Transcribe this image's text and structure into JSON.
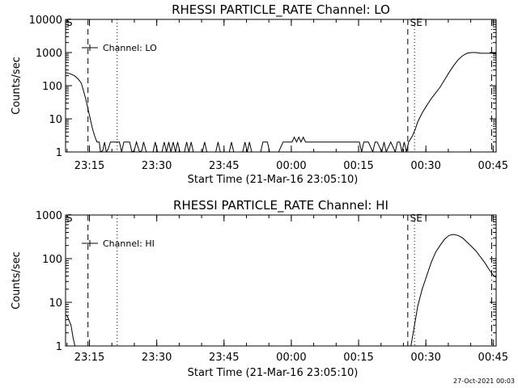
{
  "footer": "27-Oct-2021 00:03",
  "chart_data": [
    {
      "type": "line",
      "title": "RHESSI PARTICLE_RATE Channel: LO",
      "xlabel": "Start Time (21-Mar-16 23:05:10)",
      "ylabel": "Counts/sec",
      "yscale": "log",
      "ylim": [
        1,
        10000
      ],
      "yticks": [
        "1",
        "10",
        "100",
        "1000",
        "10000"
      ],
      "xlim_minutes": [
        4.5,
        45
      ],
      "xtick_labels": [
        "23:15",
        "23:30",
        "23:45",
        "00:00",
        "00:15",
        "00:30",
        "00:45"
      ],
      "legend": {
        "label": "Channel: LO",
        "position": "top-left"
      },
      "flags": [
        "S",
        "SE"
      ],
      "grid": false,
      "series": [
        {
          "name": "Channel: LO",
          "points": [
            [
              4.5,
              250
            ],
            [
              5.5,
              230
            ],
            [
              6.5,
              200
            ],
            [
              7.3,
              160
            ],
            [
              8.0,
              120
            ],
            [
              8.5,
              70
            ],
            [
              9.0,
              40
            ],
            [
              9.5,
              20
            ],
            [
              10.0,
              10
            ],
            [
              10.5,
              5
            ],
            [
              11.0,
              3
            ],
            [
              11.5,
              2
            ],
            [
              12.0,
              2
            ],
            [
              12.3,
              1
            ],
            [
              12.8,
              1.1
            ],
            [
              13.2,
              2
            ],
            [
              13.6,
              1
            ],
            [
              14.0,
              1.2
            ],
            [
              14.5,
              2
            ],
            [
              15.2,
              2
            ],
            [
              16.0,
              2
            ],
            [
              16.5,
              2
            ],
            [
              17.0,
              1
            ],
            [
              17.5,
              2
            ],
            [
              18.2,
              2
            ],
            [
              18.8,
              2
            ],
            [
              19.3,
              1
            ],
            [
              19.8,
              1.1
            ],
            [
              20.3,
              2
            ],
            [
              21.0,
              1
            ],
            [
              21.5,
              1.1
            ],
            [
              21.9,
              2
            ],
            [
              22.5,
              1
            ],
            [
              23.5,
              1
            ],
            [
              24.0,
              1
            ],
            [
              24.5,
              2
            ],
            [
              25.0,
              1
            ],
            [
              26.0,
              1
            ],
            [
              26.5,
              2
            ],
            [
              27.0,
              1
            ],
            [
              27.5,
              2
            ],
            [
              28.0,
              1
            ],
            [
              28.5,
              2
            ],
            [
              29.0,
              1
            ],
            [
              29.5,
              2
            ],
            [
              30.0,
              1
            ],
            [
              31.0,
              1
            ],
            [
              31.5,
              2
            ],
            [
              32.0,
              1
            ],
            [
              32.5,
              2
            ],
            [
              33.0,
              1
            ],
            [
              34.0,
              1
            ],
            [
              35.0,
              1
            ],
            [
              35.5,
              2
            ],
            [
              36.0,
              1
            ],
            [
              37.0,
              1
            ],
            [
              38.0,
              1
            ],
            [
              38.5,
              2
            ],
            [
              39.0,
              1
            ],
            [
              40.0,
              1
            ],
            [
              41.0,
              1
            ],
            [
              41.5,
              2
            ],
            [
              42.0,
              1
            ],
            [
              43.0,
              1
            ],
            [
              44.0,
              1
            ],
            [
              44.5,
              2
            ],
            [
              45.0,
              1
            ],
            [
              45.5,
              2
            ],
            [
              46.0,
              1
            ],
            [
              47.0,
              1
            ],
            [
              48.0,
              1
            ],
            [
              48.5,
              2
            ],
            [
              49.0,
              2
            ],
            [
              49.5,
              2
            ],
            [
              50.0,
              1
            ],
            [
              51.0,
              1
            ],
            [
              52.0,
              1
            ],
            [
              53.0,
              2
            ],
            [
              54.0,
              2
            ],
            [
              55.0,
              2
            ],
            [
              55.5,
              2.8
            ],
            [
              56.0,
              2
            ],
            [
              56.5,
              2.8
            ],
            [
              57.0,
              2
            ],
            [
              57.5,
              2.8
            ],
            [
              58.0,
              2
            ],
            [
              59.0,
              2
            ],
            [
              60.0,
              2
            ],
            [
              61.0,
              2
            ],
            [
              62.0,
              2
            ],
            [
              63.0,
              2
            ],
            [
              64.0,
              2
            ],
            [
              65.0,
              2
            ],
            [
              66.0,
              2
            ],
            [
              67.0,
              2
            ],
            [
              68.0,
              2
            ],
            [
              69.0,
              2
            ],
            [
              70.0,
              2
            ],
            [
              70.5,
              1
            ],
            [
              71.0,
              2
            ],
            [
              72.0,
              2
            ],
            [
              73.0,
              1
            ],
            [
              73.5,
              2
            ],
            [
              74.0,
              2
            ],
            [
              75.0,
              1
            ],
            [
              75.5,
              2
            ],
            [
              76.0,
              1
            ],
            [
              77.0,
              2
            ],
            [
              78.0,
              1
            ],
            [
              78.5,
              2
            ],
            [
              79.0,
              2
            ],
            [
              79.5,
              1
            ],
            [
              80.0,
              2
            ],
            [
              80.5,
              1
            ],
            [
              81.0,
              2
            ],
            [
              81.8,
              3
            ],
            [
              82.5,
              5
            ],
            [
              83.0,
              8
            ],
            [
              84.0,
              15
            ],
            [
              85.0,
              25
            ],
            [
              86.0,
              40
            ],
            [
              87.0,
              60
            ],
            [
              88.0,
              90
            ],
            [
              89.0,
              150
            ],
            [
              90.0,
              250
            ],
            [
              91.0,
              400
            ],
            [
              92.0,
              600
            ],
            [
              93.0,
              800
            ],
            [
              94.0,
              950
            ],
            [
              95.0,
              1000
            ],
            [
              96.0,
              1000
            ],
            [
              97.0,
              950
            ],
            [
              98.0,
              950
            ],
            [
              99.0,
              950
            ],
            [
              100.0,
              950
            ],
            [
              101.0,
              950
            ],
            [
              101.8,
              950
            ]
          ]
        }
      ],
      "markers": [
        {
          "style": "dashed",
          "x": 9.5
        },
        {
          "style": "dotted",
          "x": 16.0
        },
        {
          "style": "dashed",
          "x": 80.8
        },
        {
          "style": "dotted",
          "x": 82.3
        },
        {
          "style": "dash-dot",
          "x": 99.5
        }
      ]
    },
    {
      "type": "line",
      "title": "RHESSI PARTICLE_RATE Channel: HI",
      "xlabel": "Start Time (21-Mar-16 23:05:10)",
      "ylabel": "Counts/sec",
      "yscale": "log",
      "ylim": [
        1,
        1000
      ],
      "yticks": [
        "1",
        "10",
        "100",
        "1000"
      ],
      "xlim_minutes": [
        4.5,
        45
      ],
      "xtick_labels": [
        "23:15",
        "23:30",
        "23:45",
        "00:00",
        "00:15",
        "00:30",
        "00:45"
      ],
      "legend": {
        "label": "Channel: HI",
        "position": "top-left"
      },
      "flags": [
        "S",
        "SE"
      ],
      "grid": false,
      "series": [
        {
          "name": "Channel: HI",
          "points": [
            [
              4.5,
              5
            ],
            [
              4.8,
              5
            ],
            [
              5.2,
              4
            ],
            [
              5.7,
              3
            ],
            [
              6.2,
              1.5
            ],
            [
              6.6,
              1
            ],
            [
              81.5,
              1
            ],
            [
              82.0,
              2
            ],
            [
              82.5,
              4
            ],
            [
              83.0,
              8
            ],
            [
              84.0,
              20
            ],
            [
              85.0,
              40
            ],
            [
              86.0,
              80
            ],
            [
              87.0,
              140
            ],
            [
              88.0,
              200
            ],
            [
              89.0,
              280
            ],
            [
              90.0,
              340
            ],
            [
              91.0,
              360
            ],
            [
              92.0,
              340
            ],
            [
              93.0,
              300
            ],
            [
              94.0,
              240
            ],
            [
              95.0,
              190
            ],
            [
              96.0,
              150
            ],
            [
              97.0,
              110
            ],
            [
              98.0,
              80
            ],
            [
              99.0,
              55
            ],
            [
              100.0,
              40
            ],
            [
              101.0,
              35
            ]
          ]
        }
      ],
      "markers": [
        {
          "style": "dashed",
          "x": 9.5
        },
        {
          "style": "dotted",
          "x": 16.0
        },
        {
          "style": "dashed",
          "x": 80.8
        },
        {
          "style": "dotted",
          "x": 82.3
        },
        {
          "style": "dash-dot",
          "x": 99.5
        }
      ]
    }
  ]
}
